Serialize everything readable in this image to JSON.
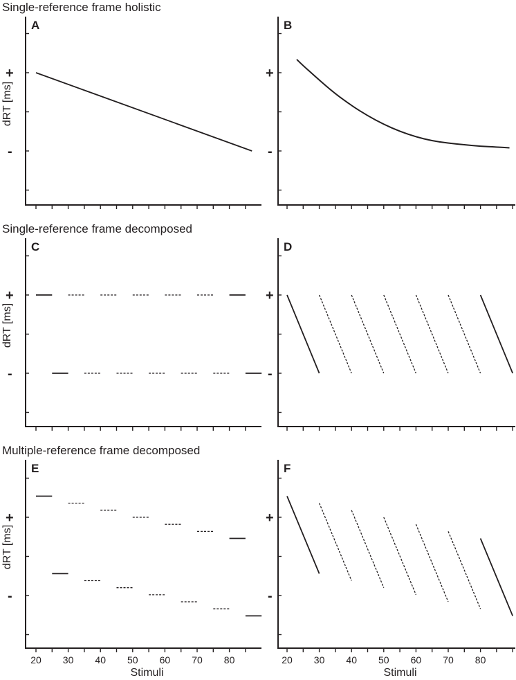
{
  "figure": {
    "row_titles": [
      "Single-reference frame holistic",
      "Single-reference frame decomposed",
      "Multiple-reference frame decomposed"
    ],
    "ylabel": "dRT [ms]",
    "xlabel": "Stimuli",
    "y_plus": "+",
    "y_minus": "-",
    "x_ticks": [
      "20",
      "30",
      "40",
      "50",
      "60",
      "70",
      "80"
    ]
  },
  "chart_data": [
    {
      "panel": "A",
      "type": "line",
      "style": "solid",
      "segments": [
        {
          "x": [
            20,
            87
          ],
          "y": [
            1.0,
            0.0
          ]
        }
      ]
    },
    {
      "panel": "B",
      "type": "line",
      "style": "solid",
      "curve": "exponential-decay",
      "x": [
        23,
        25,
        28,
        31,
        35,
        40,
        45,
        50,
        55,
        60,
        65,
        70,
        75,
        80,
        85,
        89
      ],
      "y": [
        1.17,
        1.09,
        0.98,
        0.87,
        0.73,
        0.58,
        0.45,
        0.34,
        0.25,
        0.18,
        0.13,
        0.1,
        0.08,
        0.06,
        0.05,
        0.04
      ]
    },
    {
      "panel": "C",
      "type": "line",
      "segments": [
        {
          "x": [
            20,
            25
          ],
          "y": [
            1,
            1
          ],
          "style": "solid"
        },
        {
          "x": [
            30,
            35
          ],
          "y": [
            1,
            1
          ],
          "style": "dotted"
        },
        {
          "x": [
            40,
            45
          ],
          "y": [
            1,
            1
          ],
          "style": "dotted"
        },
        {
          "x": [
            50,
            55
          ],
          "y": [
            1,
            1
          ],
          "style": "dotted"
        },
        {
          "x": [
            60,
            65
          ],
          "y": [
            1,
            1
          ],
          "style": "dotted"
        },
        {
          "x": [
            70,
            75
          ],
          "y": [
            1,
            1
          ],
          "style": "dotted"
        },
        {
          "x": [
            80,
            85
          ],
          "y": [
            1,
            1
          ],
          "style": "solid"
        },
        {
          "x": [
            25,
            30
          ],
          "y": [
            0,
            0
          ],
          "style": "solid"
        },
        {
          "x": [
            35,
            40
          ],
          "y": [
            0,
            0
          ],
          "style": "dotted"
        },
        {
          "x": [
            45,
            50
          ],
          "y": [
            0,
            0
          ],
          "style": "dotted"
        },
        {
          "x": [
            55,
            60
          ],
          "y": [
            0,
            0
          ],
          "style": "dotted"
        },
        {
          "x": [
            65,
            70
          ],
          "y": [
            0,
            0
          ],
          "style": "dotted"
        },
        {
          "x": [
            75,
            80
          ],
          "y": [
            0,
            0
          ],
          "style": "dotted"
        },
        {
          "x": [
            85,
            90
          ],
          "y": [
            0,
            0
          ],
          "style": "solid"
        }
      ]
    },
    {
      "panel": "D",
      "type": "line",
      "segments": [
        {
          "x": [
            20,
            30
          ],
          "y": [
            1,
            0
          ],
          "style": "solid"
        },
        {
          "x": [
            30,
            40
          ],
          "y": [
            1,
            0
          ],
          "style": "dotted"
        },
        {
          "x": [
            40,
            50
          ],
          "y": [
            1,
            0
          ],
          "style": "dotted"
        },
        {
          "x": [
            50,
            60
          ],
          "y": [
            1,
            0
          ],
          "style": "dotted"
        },
        {
          "x": [
            60,
            70
          ],
          "y": [
            1,
            0
          ],
          "style": "dotted"
        },
        {
          "x": [
            70,
            80
          ],
          "y": [
            1,
            0
          ],
          "style": "dotted"
        },
        {
          "x": [
            80,
            90
          ],
          "y": [
            1,
            0
          ],
          "style": "solid"
        }
      ]
    },
    {
      "panel": "E",
      "type": "line",
      "segments": [
        {
          "x": [
            20,
            25
          ],
          "y": [
            1.27,
            1.27
          ],
          "style": "solid"
        },
        {
          "x": [
            30,
            35
          ],
          "y": [
            1.18,
            1.18
          ],
          "style": "dotted"
        },
        {
          "x": [
            40,
            45
          ],
          "y": [
            1.09,
            1.09
          ],
          "style": "dotted"
        },
        {
          "x": [
            50,
            55
          ],
          "y": [
            1.0,
            1.0
          ],
          "style": "dotted"
        },
        {
          "x": [
            60,
            65
          ],
          "y": [
            0.91,
            0.91
          ],
          "style": "dotted"
        },
        {
          "x": [
            70,
            75
          ],
          "y": [
            0.82,
            0.82
          ],
          "style": "dotted"
        },
        {
          "x": [
            80,
            85
          ],
          "y": [
            0.73,
            0.73
          ],
          "style": "solid"
        },
        {
          "x": [
            25,
            30
          ],
          "y": [
            0.28,
            0.28
          ],
          "style": "solid"
        },
        {
          "x": [
            35,
            40
          ],
          "y": [
            0.19,
            0.19
          ],
          "style": "dotted"
        },
        {
          "x": [
            45,
            50
          ],
          "y": [
            0.1,
            0.1
          ],
          "style": "dotted"
        },
        {
          "x": [
            55,
            60
          ],
          "y": [
            0.01,
            0.01
          ],
          "style": "dotted"
        },
        {
          "x": [
            65,
            70
          ],
          "y": [
            -0.08,
            -0.08
          ],
          "style": "dotted"
        },
        {
          "x": [
            75,
            80
          ],
          "y": [
            -0.17,
            -0.17
          ],
          "style": "dotted"
        },
        {
          "x": [
            85,
            90
          ],
          "y": [
            -0.26,
            -0.26
          ],
          "style": "solid"
        }
      ]
    },
    {
      "panel": "F",
      "type": "line",
      "segments": [
        {
          "x": [
            20,
            30
          ],
          "y": [
            1.27,
            0.28
          ],
          "style": "solid"
        },
        {
          "x": [
            30,
            40
          ],
          "y": [
            1.18,
            0.19
          ],
          "style": "dotted"
        },
        {
          "x": [
            40,
            50
          ],
          "y": [
            1.09,
            0.1
          ],
          "style": "dotted"
        },
        {
          "x": [
            50,
            60
          ],
          "y": [
            1.0,
            0.01
          ],
          "style": "dotted"
        },
        {
          "x": [
            60,
            70
          ],
          "y": [
            0.91,
            -0.08
          ],
          "style": "dotted"
        },
        {
          "x": [
            70,
            80
          ],
          "y": [
            0.82,
            -0.17
          ],
          "style": "dotted"
        },
        {
          "x": [
            80,
            90
          ],
          "y": [
            0.73,
            -0.26
          ],
          "style": "solid"
        }
      ]
    }
  ]
}
